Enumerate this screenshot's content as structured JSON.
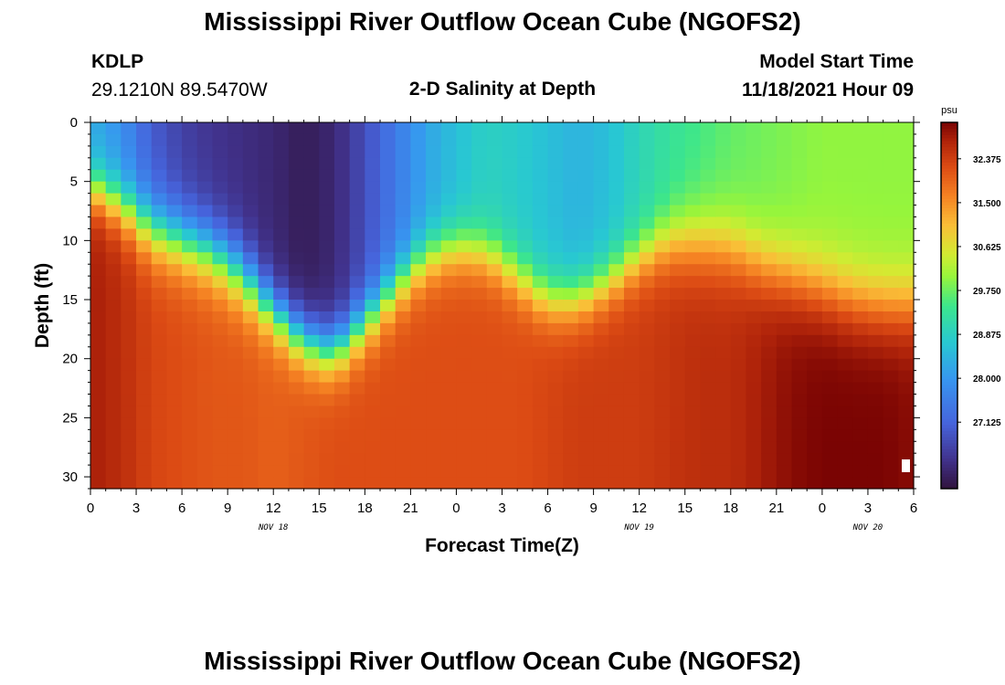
{
  "header": {
    "title": "Mississippi River Outflow Ocean Cube (NGOFS2)",
    "station_id": "KDLP",
    "coordinates": "29.1210N  89.5470W",
    "plot_title": "2-D Salinity at Depth",
    "model_start_label": "Model Start Time",
    "model_start_value": "11/18/2021 Hour 09"
  },
  "footer": {
    "repeated_title": "Mississippi River Outflow Ocean Cube (NGOFS2)"
  },
  "chart_data": {
    "type": "heatmap",
    "title": "2-D Salinity at Depth",
    "xlabel": "Forecast Time(Z)",
    "ylabel": "Depth (ft)",
    "x_hours_start": 0,
    "x_hours_end": 54,
    "x_tick_labels": [
      "0",
      "3",
      "6",
      "9",
      "12",
      "15",
      "18",
      "21",
      "0",
      "3",
      "6",
      "9",
      "12",
      "15",
      "18",
      "21",
      "0",
      "3",
      "6"
    ],
    "date_labels": [
      {
        "text": "NOV 18",
        "hour": 12
      },
      {
        "text": "NOV 19",
        "hour": 36
      },
      {
        "text": "NOV 20",
        "hour": 51
      }
    ],
    "ylim": [
      0,
      31
    ],
    "y_ticks": [
      0,
      5,
      10,
      15,
      20,
      25,
      30
    ],
    "colorbar": {
      "unit": "psu",
      "min": 25.8,
      "max": 33.1,
      "tick_labels": [
        "32.375",
        "31.500",
        "30.625",
        "29.750",
        "28.875",
        "28.000",
        "27.125"
      ],
      "tick_values": [
        32.375,
        31.5,
        30.625,
        29.75,
        28.875,
        28.0,
        27.125
      ]
    },
    "profile_columns": [
      "hour",
      "halocline_depth_ft",
      "halocline_width_ft",
      "surface_psu",
      "bottom_psu"
    ],
    "profiles": [
      [
        0,
        5.5,
        2.8,
        28.3,
        32.8
      ],
      [
        2,
        7.0,
        3.0,
        27.9,
        32.6
      ],
      [
        4,
        9.0,
        3.5,
        27.0,
        32.3
      ],
      [
        6,
        10.0,
        3.5,
        26.6,
        32.2
      ],
      [
        8,
        11.0,
        3.5,
        26.4,
        32.1
      ],
      [
        10,
        13.0,
        3.5,
        26.3,
        32.1
      ],
      [
        12,
        16.0,
        3.0,
        26.2,
        32.0
      ],
      [
        14,
        18.5,
        3.0,
        26.0,
        32.1
      ],
      [
        16,
        19.5,
        3.0,
        26.2,
        32.2
      ],
      [
        18,
        17.0,
        3.0,
        26.8,
        32.2
      ],
      [
        20,
        14.0,
        3.0,
        27.5,
        32.2
      ],
      [
        22,
        11.5,
        3.0,
        28.2,
        32.2
      ],
      [
        24,
        10.5,
        3.0,
        28.6,
        32.2
      ],
      [
        26,
        11.0,
        3.0,
        28.9,
        32.2
      ],
      [
        28,
        13.0,
        3.0,
        28.8,
        32.2
      ],
      [
        30,
        15.0,
        3.0,
        28.6,
        32.3
      ],
      [
        32,
        15.0,
        3.0,
        28.4,
        32.4
      ],
      [
        34,
        13.5,
        3.0,
        28.6,
        32.4
      ],
      [
        36,
        11.5,
        3.0,
        29.0,
        32.4
      ],
      [
        38,
        10.0,
        3.5,
        29.3,
        32.5
      ],
      [
        40,
        10.0,
        4.0,
        29.5,
        32.6
      ],
      [
        42,
        10.5,
        4.0,
        29.7,
        32.6
      ],
      [
        44,
        12.0,
        4.0,
        29.8,
        32.8
      ],
      [
        46,
        13.0,
        4.0,
        29.9,
        33.0
      ],
      [
        48,
        14.0,
        4.0,
        30.0,
        33.1
      ],
      [
        50,
        15.0,
        4.0,
        30.0,
        33.1
      ],
      [
        52,
        15.5,
        4.0,
        30.0,
        33.1
      ],
      [
        54,
        15.5,
        4.0,
        30.0,
        33.0
      ]
    ],
    "grid": false
  }
}
